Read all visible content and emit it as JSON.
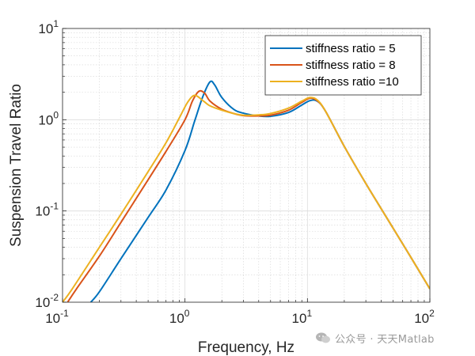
{
  "chart_data": {
    "type": "line",
    "title": "",
    "xlabel": "Frequency, Hz",
    "ylabel": "Suspension Travel Ratio",
    "xscale": "log",
    "yscale": "log",
    "xlim": [
      0.1,
      100
    ],
    "ylim": [
      0.01,
      10
    ],
    "grid": true,
    "minor_grid": true,
    "legend_position": "top-right",
    "x_tick_labels": [
      {
        "base": "10",
        "exp": "-1"
      },
      {
        "base": "10",
        "exp": "0"
      },
      {
        "base": "10",
        "exp": "1"
      },
      {
        "base": "10",
        "exp": "2"
      }
    ],
    "y_tick_labels": [
      {
        "base": "10",
        "exp": "-2"
      },
      {
        "base": "10",
        "exp": "-1"
      },
      {
        "base": "10",
        "exp": "0"
      },
      {
        "base": "10",
        "exp": "1"
      }
    ],
    "series": [
      {
        "name": "stiffness ratio = 5",
        "color": "#0072BD",
        "x": [
          0.17,
          0.2,
          0.3,
          0.5,
          0.7,
          1.0,
          1.2,
          1.4,
          1.6,
          1.75,
          2.0,
          2.5,
          3.0,
          4.0,
          5.0,
          7.0,
          9.0,
          10.5,
          12.0,
          14.0,
          20.0,
          30.0,
          50.0,
          70.0,
          100.0
        ],
        "y": [
          0.01,
          0.013,
          0.03,
          0.085,
          0.17,
          0.46,
          0.97,
          1.8,
          2.6,
          2.4,
          1.75,
          1.3,
          1.18,
          1.1,
          1.09,
          1.2,
          1.45,
          1.62,
          1.6,
          1.25,
          0.51,
          0.2,
          0.065,
          0.031,
          0.014
        ]
      },
      {
        "name": "stiffness ratio = 8",
        "color": "#D95319",
        "x": [
          0.11,
          0.13,
          0.2,
          0.3,
          0.5,
          0.7,
          1.0,
          1.15,
          1.3,
          1.45,
          1.6,
          2.0,
          2.5,
          3.0,
          4.0,
          5.0,
          7.0,
          9.0,
          10.5,
          12.0,
          14.0,
          20.0,
          30.0,
          50.0,
          70.0,
          100.0
        ],
        "y": [
          0.01,
          0.014,
          0.032,
          0.075,
          0.22,
          0.45,
          1.0,
          1.6,
          2.05,
          1.95,
          1.6,
          1.3,
          1.17,
          1.11,
          1.1,
          1.12,
          1.27,
          1.55,
          1.72,
          1.62,
          1.25,
          0.51,
          0.2,
          0.065,
          0.031,
          0.014
        ]
      },
      {
        "name": "stiffness ratio =10",
        "color": "#EDB120",
        "x": [
          0.1,
          0.12,
          0.2,
          0.3,
          0.5,
          0.7,
          0.9,
          1.05,
          1.2,
          1.4,
          1.6,
          2.0,
          2.5,
          3.0,
          4.0,
          5.0,
          7.0,
          9.0,
          10.5,
          12.0,
          14.0,
          20.0,
          30.0,
          50.0,
          70.0,
          100.0
        ],
        "y": [
          0.01,
          0.014,
          0.04,
          0.092,
          0.27,
          0.56,
          1.05,
          1.55,
          1.85,
          1.62,
          1.42,
          1.27,
          1.17,
          1.12,
          1.13,
          1.17,
          1.34,
          1.6,
          1.75,
          1.65,
          1.25,
          0.51,
          0.2,
          0.065,
          0.031,
          0.014
        ]
      }
    ]
  },
  "watermark": {
    "text": "公众号 · 天天Matlab"
  }
}
